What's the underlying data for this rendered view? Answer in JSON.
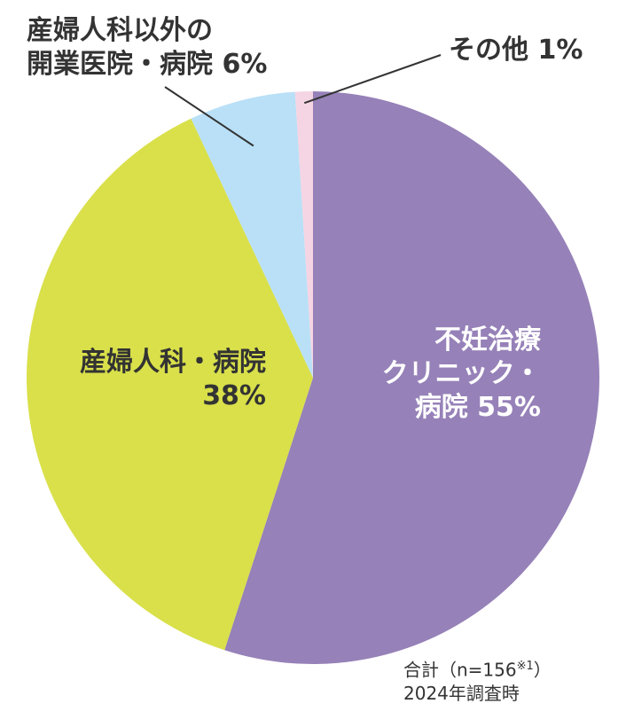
{
  "chart_data": {
    "type": "pie",
    "slices": [
      {
        "name": "不妊治療クリニック・病院",
        "value": 55,
        "color": "#9681b8",
        "label_lines": [
          "不妊治療",
          "クリニック・",
          "病院 55%"
        ]
      },
      {
        "name": "産婦人科・病院",
        "value": 38,
        "color": "#d9e04a",
        "label_lines": [
          "産婦人科・病院",
          "38%"
        ]
      },
      {
        "name": "産婦人科以外の開業医院・病院",
        "value": 6,
        "color": "#b9e0f7",
        "label_lines": [
          "産婦人科以外の",
          "開業医院・病院 6%"
        ]
      },
      {
        "name": "その他",
        "value": 1,
        "color": "#f5d5e3",
        "label_lines": [
          "その他 1%"
        ]
      }
    ],
    "start_angle_deg": 0,
    "direction": "clockwise",
    "note": {
      "total_text": "合計（n=156",
      "total_suffix": "）",
      "total_sup": "※1",
      "survey_text": "2024年調査時"
    }
  }
}
